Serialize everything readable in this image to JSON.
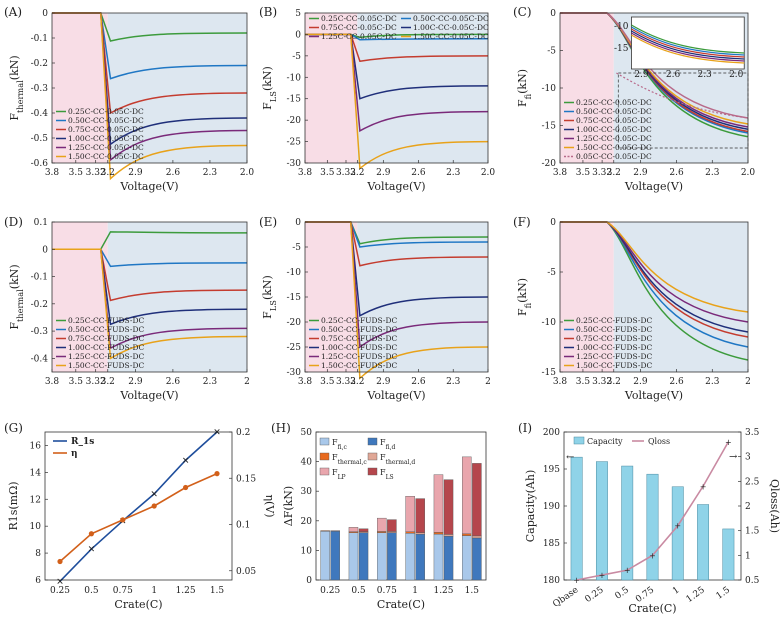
{
  "panels": [
    {
      "id": "A",
      "label": "(A)",
      "kind": "voltage",
      "ylabel": "F_thermal(kN)",
      "xlabel": "Voltage(V)",
      "xticks": [
        "3.8",
        "3.5",
        "3.32",
        "3.2",
        "2.9",
        "2.6",
        "2.3",
        "2.0"
      ],
      "ylim": [
        -0.6,
        0
      ],
      "yticks": [
        0,
        -0.1,
        -0.2,
        -0.3,
        -0.4,
        -0.5,
        -0.6
      ],
      "ytick_labels": [
        "0",
        "-0.1",
        "-0.2",
        "-0.3",
        "-0.4",
        "-0.5",
        "-0.6"
      ],
      "legend_pos": "lower-left",
      "legend": [
        "0.25C-CC-0.05C-DC",
        "0.50C-CC-0.05C-DC",
        "0.75C-CC-0.05C-DC",
        "1.00C-CC-0.05C-DC",
        "1.25C-CC-0.05C-DC",
        "1.50C-CC-0.05C-DC"
      ],
      "series_final": [
        -0.08,
        -0.21,
        -0.32,
        -0.42,
        -0.47,
        -0.53
      ]
    },
    {
      "id": "B",
      "label": "(B)",
      "kind": "voltage",
      "ylabel": "F_LS(kN)",
      "xlabel": "Voltage(V)",
      "xticks": [
        "3.8",
        "3.5",
        "3.32",
        "3.2",
        "2.9",
        "2.6",
        "2.3",
        "2.0"
      ],
      "ylim": [
        -30,
        5
      ],
      "yticks": [
        5,
        0,
        -5,
        -10,
        -15,
        -20,
        -25,
        -30
      ],
      "ytick_labels": [
        "5",
        "0",
        "-5",
        "-10",
        "-15",
        "-20",
        "-25",
        "-30"
      ],
      "legend_pos": "top",
      "legend": [
        "0.25C-CC-0.05C-DC",
        "0.50C-CC-0.05C-DC",
        "0.75C-CC-0.05C-DC",
        "1.00C-CC-0.05C-DC",
        "1.25C-CC-0.05C-DC",
        "1.50C-CC-0.05C-DC"
      ],
      "series_final": [
        0,
        -1,
        -5,
        -12,
        -18,
        -25
      ]
    },
    {
      "id": "C",
      "label": "(C)",
      "kind": "voltage",
      "ylabel": "F_fi(kN)",
      "xlabel": "Voltage(V)",
      "xticks": [
        "3.8",
        "3.5",
        "3.32",
        "3.2",
        "2.9",
        "2.6",
        "2.3",
        "2.0"
      ],
      "ylim": [
        -20,
        0
      ],
      "yticks": [
        0,
        -5,
        -10,
        -15,
        -20
      ],
      "ytick_labels": [
        "0",
        "-5",
        "-10",
        "-15",
        "-20"
      ],
      "legend_pos": "lower-left",
      "legend": [
        "0.25C-CC-0.05C-DC",
        "0.50C-CC-0.05C-DC",
        "0.75C-CC-0.05C-DC",
        "1.00C-CC-0.05C-DC",
        "1.25C-CC-0.05C-DC",
        "1.50C-CC-0.05C-DC",
        "0.05C-CC-0.05C-DC"
      ],
      "series_final": [
        -16.5,
        -16,
        -15.8,
        -15.5,
        -15.2,
        -14.8,
        -14
      ],
      "inset": {
        "xticks": [
          "2.9",
          "2.6",
          "2.3",
          "2.0"
        ],
        "yticks": [
          "-10",
          "-15"
        ]
      }
    },
    {
      "id": "D",
      "label": "(D)",
      "kind": "voltage",
      "ylabel": "F_thermal(kN)",
      "xlabel": "Voltage(V)",
      "xticks": [
        "3.8",
        "3.5",
        "3.32",
        "3.2",
        "2.9",
        "2.6",
        "2.3",
        "2"
      ],
      "ylim": [
        -0.45,
        0.1
      ],
      "yticks": [
        0.1,
        0,
        -0.1,
        -0.2,
        -0.3,
        -0.4
      ],
      "ytick_labels": [
        "0.1",
        "0",
        "-0.1",
        "-0.2",
        "-0.3",
        "-0.4"
      ],
      "legend_pos": "lower-left",
      "legend": [
        "0.25C-CC-FUDS-DC",
        "0.50C-CC-FUDS-DC",
        "0.75C-CC-FUDS-DC",
        "1.00C-CC-FUDS-DC",
        "1.25C-CC-FUDS-DC",
        "1.50C-CC-FUDS-DC"
      ],
      "series_final": [
        0.06,
        -0.05,
        -0.15,
        -0.22,
        -0.29,
        -0.32
      ]
    },
    {
      "id": "E",
      "label": "(E)",
      "kind": "voltage",
      "ylabel": "F_LS(kN)",
      "xlabel": "Voltage(V)",
      "xticks": [
        "3.8",
        "3.5",
        "3.32",
        "3.2",
        "2.9",
        "2.6",
        "2.3",
        "2"
      ],
      "ylim": [
        -30,
        0
      ],
      "yticks": [
        0,
        -5,
        -10,
        -15,
        -20,
        -25,
        -30
      ],
      "ytick_labels": [
        "0",
        "-5",
        "-10",
        "-15",
        "-20",
        "-25",
        "-30"
      ],
      "legend_pos": "lower-left",
      "legend": [
        "0.25C-CC-FUDS-DC",
        "0.50C-CC-FUDS-DC",
        "0.75C-CC-FUDS-DC",
        "1.00C-CC-FUDS-DC",
        "1.25C-CC-FUDS-DC",
        "1.50C-CC-FUDS-DC"
      ],
      "series_final": [
        -3,
        -4,
        -7,
        -15,
        -20,
        -25
      ]
    },
    {
      "id": "F",
      "label": "(F)",
      "kind": "voltage",
      "ylabel": "F_fi(kN)",
      "xlabel": "Voltage(V)",
      "xticks": [
        "3.8",
        "3.5",
        "3.32",
        "3.2",
        "2.9",
        "2.6",
        "2.3",
        "2"
      ],
      "ylim": [
        -15,
        0
      ],
      "yticks": [
        0,
        -5,
        -10,
        -15
      ],
      "ytick_labels": [
        "0",
        "-5",
        "-10",
        "-15"
      ],
      "legend_pos": "lower-left",
      "legend": [
        "0.25C-CC-FUDS-DC",
        "0.50C-CC-FUDS-DC",
        "0.75C-CC-FUDS-DC",
        "1.00C-CC-FUDS-DC",
        "1.25C-CC-FUDS-DC",
        "1.50C-CC-FUDS-DC"
      ],
      "series_final": [
        -13.8,
        -12.5,
        -11.5,
        -11,
        -10,
        -9
      ]
    },
    {
      "id": "G",
      "label": "(G)",
      "kind": "dual-line",
      "ylabel": "R1s(mΩ)",
      "ylabel2": "η(V)",
      "xlabel": "Crate(C)",
      "x": [
        0.25,
        0.5,
        0.75,
        1,
        1.25,
        1.5
      ],
      "xticks": [
        "0.25",
        "0.5",
        "0.75",
        "1",
        "1.25",
        "1.5"
      ],
      "ylim": [
        6,
        17
      ],
      "yticks": [
        6,
        8,
        10,
        12,
        14,
        16
      ],
      "ytick_labels": [
        "6",
        "8",
        "10",
        "12",
        "14",
        "16"
      ],
      "y2lim": [
        0.04,
        0.2
      ],
      "y2ticks": [
        0.05,
        0.1,
        0.15,
        0.2
      ],
      "y2tick_labels": [
        "0.05",
        "0.1",
        "0.15",
        "0.2"
      ],
      "series": [
        {
          "name": "R_1s",
          "color": "#1f4e9c",
          "values": [
            5.9,
            8.3,
            10.4,
            12.4,
            14.9,
            17.0
          ]
        },
        {
          "name": "η",
          "color": "#d2601a",
          "values": [
            0.06,
            0.09,
            0.105,
            0.12,
            0.14,
            0.155
          ]
        }
      ]
    },
    {
      "id": "H",
      "label": "(H)",
      "kind": "stacked-bar",
      "ylabel": "ΔF(kN)",
      "xlabel": "Crate(C)",
      "categories": [
        "0.25",
        "0.5",
        "0.75",
        "1",
        "1.25",
        "1.5"
      ],
      "ylim": [
        0,
        50
      ],
      "yticks": [
        0,
        10,
        20,
        30,
        40,
        50
      ],
      "ytick_labels": [
        "0",
        "10",
        "20",
        "30",
        "40",
        "50"
      ],
      "legend": [
        "F_fi,c",
        "F_fi,d",
        "F_thermal,c",
        "F_thermal,d",
        "F_LP",
        "F_LS"
      ],
      "colors": {
        "fi_c": "#a9c8ea",
        "fi_d": "#3f78bd",
        "thermal_c": "#e86a1e",
        "thermal_d": "#e0a796",
        "LP": "#e9a6ad",
        "LS": "#b5464c"
      },
      "charge_bars": [
        {
          "fi": 16.5,
          "thermal": 0.2,
          "lp": 0
        },
        {
          "fi": 16.0,
          "thermal": 0.3,
          "lp": 1.5
        },
        {
          "fi": 16.0,
          "thermal": 0.4,
          "lp": 4.5
        },
        {
          "fi": 15.8,
          "thermal": 0.5,
          "lp": 12.0
        },
        {
          "fi": 15.5,
          "thermal": 0.6,
          "lp": 19.5
        },
        {
          "fi": 15.0,
          "thermal": 0.6,
          "lp": 26.0
        }
      ],
      "discharge_bars": [
        {
          "fi": 16.5,
          "thermal": 0.2,
          "ls": 0
        },
        {
          "fi": 16.0,
          "thermal": 0.3,
          "ls": 1.0
        },
        {
          "fi": 16.0,
          "thermal": 0.4,
          "ls": 4.0
        },
        {
          "fi": 15.5,
          "thermal": 0.5,
          "ls": 11.5
        },
        {
          "fi": 14.8,
          "thermal": 0.6,
          "ls": 18.5
        },
        {
          "fi": 14.2,
          "thermal": 0.7,
          "ls": 24.5
        }
      ]
    },
    {
      "id": "I",
      "label": "(I)",
      "kind": "bar-line",
      "ylabel": "Capacity(Ah)",
      "ylabel2": "Qloss(Ah)",
      "xlabel": "Crate(C)",
      "categories": [
        "Qbase",
        "0.25",
        "0.5",
        "0.75",
        "1",
        "1.25",
        "1.5"
      ],
      "ylim": [
        180,
        200
      ],
      "yticks": [
        180,
        185,
        190,
        195,
        200
      ],
      "ytick_labels": [
        "180",
        "185",
        "190",
        "195",
        "200"
      ],
      "y2lim": [
        0.5,
        3.5
      ],
      "y2ticks": [
        0.5,
        1,
        1.5,
        2,
        2.5,
        3,
        3.5
      ],
      "y2tick_labels": [
        "0.5",
        "1",
        "1.5",
        "2",
        "2.5",
        "3",
        "3.5"
      ],
      "legend": [
        "Capacity",
        "Qloss"
      ],
      "bar_color": "#8fd3e8",
      "line_color": "#c98aa2",
      "capacity": [
        196.6,
        196.0,
        195.4,
        194.3,
        192.6,
        190.2,
        186.9
      ],
      "qloss": [
        0.5,
        0.6,
        0.7,
        1.0,
        1.6,
        2.4,
        3.3
      ]
    }
  ]
}
